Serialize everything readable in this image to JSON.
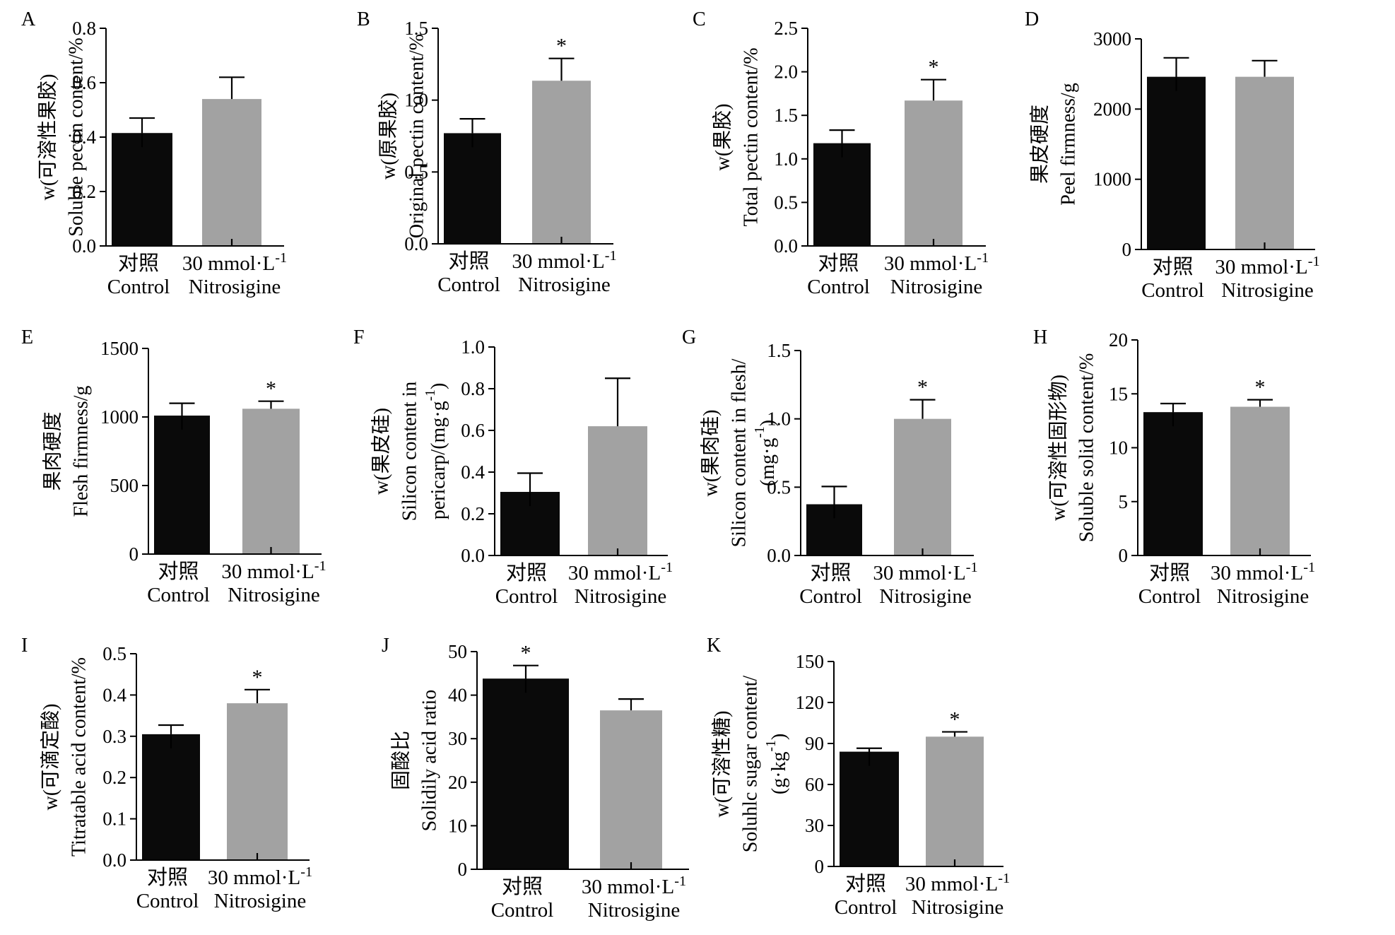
{
  "colors": {
    "control": "#0a0a0a",
    "treatment": "#a2a2a2",
    "axis": "#000000"
  },
  "chart_data": [
    {
      "panel": "A",
      "type": "bar",
      "ylabel": [
        "w(可溶性果胶)",
        "Soluble pectin content/%"
      ],
      "ylim": [
        0,
        0.8
      ],
      "yticks": [
        "0.0",
        "0.2",
        "0.4",
        "0.6",
        "0.8"
      ],
      "categories": [
        [
          "对照",
          "Control"
        ],
        [
          "30 mmol·L-1",
          "Nitrosigine"
        ]
      ],
      "values": [
        0.415,
        0.54
      ],
      "errors": [
        0.055,
        0.08
      ],
      "significance": [
        "",
        ""
      ]
    },
    {
      "panel": "B",
      "type": "bar",
      "ylabel": [
        "w(原果胶)",
        "Original pectin content/%"
      ],
      "ylim": [
        0,
        1.5
      ],
      "yticks": [
        "0.0",
        "0.5",
        "1.0",
        "1.5"
      ],
      "categories": [
        [
          "对照",
          "Control"
        ],
        [
          "30 mmol·L-1",
          "Nitrosigine"
        ]
      ],
      "values": [
        0.77,
        1.135
      ],
      "errors": [
        0.1,
        0.155
      ],
      "significance": [
        "",
        "*"
      ]
    },
    {
      "panel": "C",
      "type": "bar",
      "ylabel": [
        "w(果胶)",
        "Total pectin content/%"
      ],
      "ylim": [
        0,
        2.5
      ],
      "yticks": [
        "0.0",
        "0.5",
        "1.0",
        "1.5",
        "2.0",
        "2.5"
      ],
      "categories": [
        [
          "对照",
          "Control"
        ],
        [
          "30 mmol·L-1",
          "Nitrosigine"
        ]
      ],
      "values": [
        1.18,
        1.67
      ],
      "errors": [
        0.15,
        0.24
      ],
      "significance": [
        "",
        "*"
      ]
    },
    {
      "panel": "D",
      "type": "bar",
      "ylabel": [
        "果皮硬度",
        "Peel firmness/g"
      ],
      "ylim": [
        0,
        3000
      ],
      "yticks": [
        "0",
        "1000",
        "2000",
        "3000"
      ],
      "categories": [
        [
          "对照",
          "Control"
        ],
        [
          "30 mmol·L-1",
          "Nitrosigine"
        ]
      ],
      "values": [
        2460,
        2460
      ],
      "errors": [
        270,
        230
      ],
      "significance": [
        "",
        ""
      ]
    },
    {
      "panel": "E",
      "type": "bar",
      "ylabel": [
        "果肉硬度",
        "Flesh firmness/g"
      ],
      "ylim": [
        0,
        1500
      ],
      "yticks": [
        "0",
        "500",
        "1000",
        "1500"
      ],
      "categories": [
        [
          "对照",
          "Control"
        ],
        [
          "30 mmol·L-1",
          "Nitrosigine"
        ]
      ],
      "values": [
        1010,
        1060
      ],
      "errors": [
        90,
        55
      ],
      "significance": [
        "",
        "*"
      ]
    },
    {
      "panel": "F",
      "type": "bar",
      "ylabel": [
        "w(果皮硅)",
        "Silicon content in",
        "pericarp/(mg·g-1)"
      ],
      "ylim": [
        0,
        1.0
      ],
      "yticks": [
        "0.0",
        "0.2",
        "0.4",
        "0.6",
        "0.8",
        "1.0"
      ],
      "categories": [
        [
          "对照",
          "Control"
        ],
        [
          "30 mmol·L-1",
          "Nitrosigine"
        ]
      ],
      "values": [
        0.305,
        0.62
      ],
      "errors": [
        0.09,
        0.23
      ],
      "significance": [
        "",
        ""
      ]
    },
    {
      "panel": "G",
      "type": "bar",
      "ylabel": [
        "w(果肉硅)",
        "Silicon content in flesh/",
        "(mg·g-1)"
      ],
      "ylim": [
        0,
        1.5
      ],
      "yticks": [
        "0.0",
        "0.5",
        "1.0",
        "1.5"
      ],
      "categories": [
        [
          "对照",
          "Control"
        ],
        [
          "30 mmol·L-1",
          "Nitrosigine"
        ]
      ],
      "values": [
        0.375,
        1.0
      ],
      "errors": [
        0.13,
        0.14
      ],
      "significance": [
        "",
        "*"
      ]
    },
    {
      "panel": "H",
      "type": "bar",
      "ylabel": [
        "w(可溶性固形物)",
        "Soluble solid content/%"
      ],
      "ylim": [
        0,
        20
      ],
      "yticks": [
        "0",
        "5",
        "10",
        "15",
        "20"
      ],
      "categories": [
        [
          "对照",
          "Control"
        ],
        [
          "30 mmol·L-1",
          "Nitrosigine"
        ]
      ],
      "values": [
        13.3,
        13.8
      ],
      "errors": [
        0.8,
        0.65
      ],
      "significance": [
        "",
        "*"
      ]
    },
    {
      "panel": "I",
      "type": "bar",
      "ylabel": [
        "w(可滴定酸)",
        "Titratable acid content/%"
      ],
      "ylim": [
        0,
        0.5
      ],
      "yticks": [
        "0.0",
        "0.1",
        "0.2",
        "0.3",
        "0.4",
        "0.5"
      ],
      "categories": [
        [
          "对照",
          "Control"
        ],
        [
          "30 mmol·L-1",
          "Nitrosigine"
        ]
      ],
      "values": [
        0.305,
        0.38
      ],
      "errors": [
        0.022,
        0.033
      ],
      "significance": [
        "",
        "*"
      ]
    },
    {
      "panel": "J",
      "type": "bar",
      "ylabel": [
        "固酸比",
        "Solidily acid ratio"
      ],
      "ylim": [
        0,
        50
      ],
      "yticks": [
        "0",
        "10",
        "20",
        "30",
        "40",
        "50"
      ],
      "categories": [
        [
          "对照",
          "Control"
        ],
        [
          "30 mmol·L-1",
          "Nitrosigine"
        ]
      ],
      "values": [
        43.8,
        36.5
      ],
      "errors": [
        3.0,
        2.6
      ],
      "significance": [
        "*",
        ""
      ]
    },
    {
      "panel": "K",
      "type": "bar",
      "ylabel": [
        "w(可溶性糖)",
        "Soluhlc sugar content/",
        "(g·kg-1)"
      ],
      "ylim": [
        0,
        150
      ],
      "yticks": [
        "0",
        "30",
        "60",
        "90",
        "120",
        "150"
      ],
      "categories": [
        [
          "对照",
          "Control"
        ],
        [
          "30 mmol·L-1",
          "Nitrosigine"
        ]
      ],
      "values": [
        84,
        95
      ],
      "errors": [
        2.5,
        3.5
      ],
      "significance": [
        "",
        "*"
      ]
    }
  ]
}
